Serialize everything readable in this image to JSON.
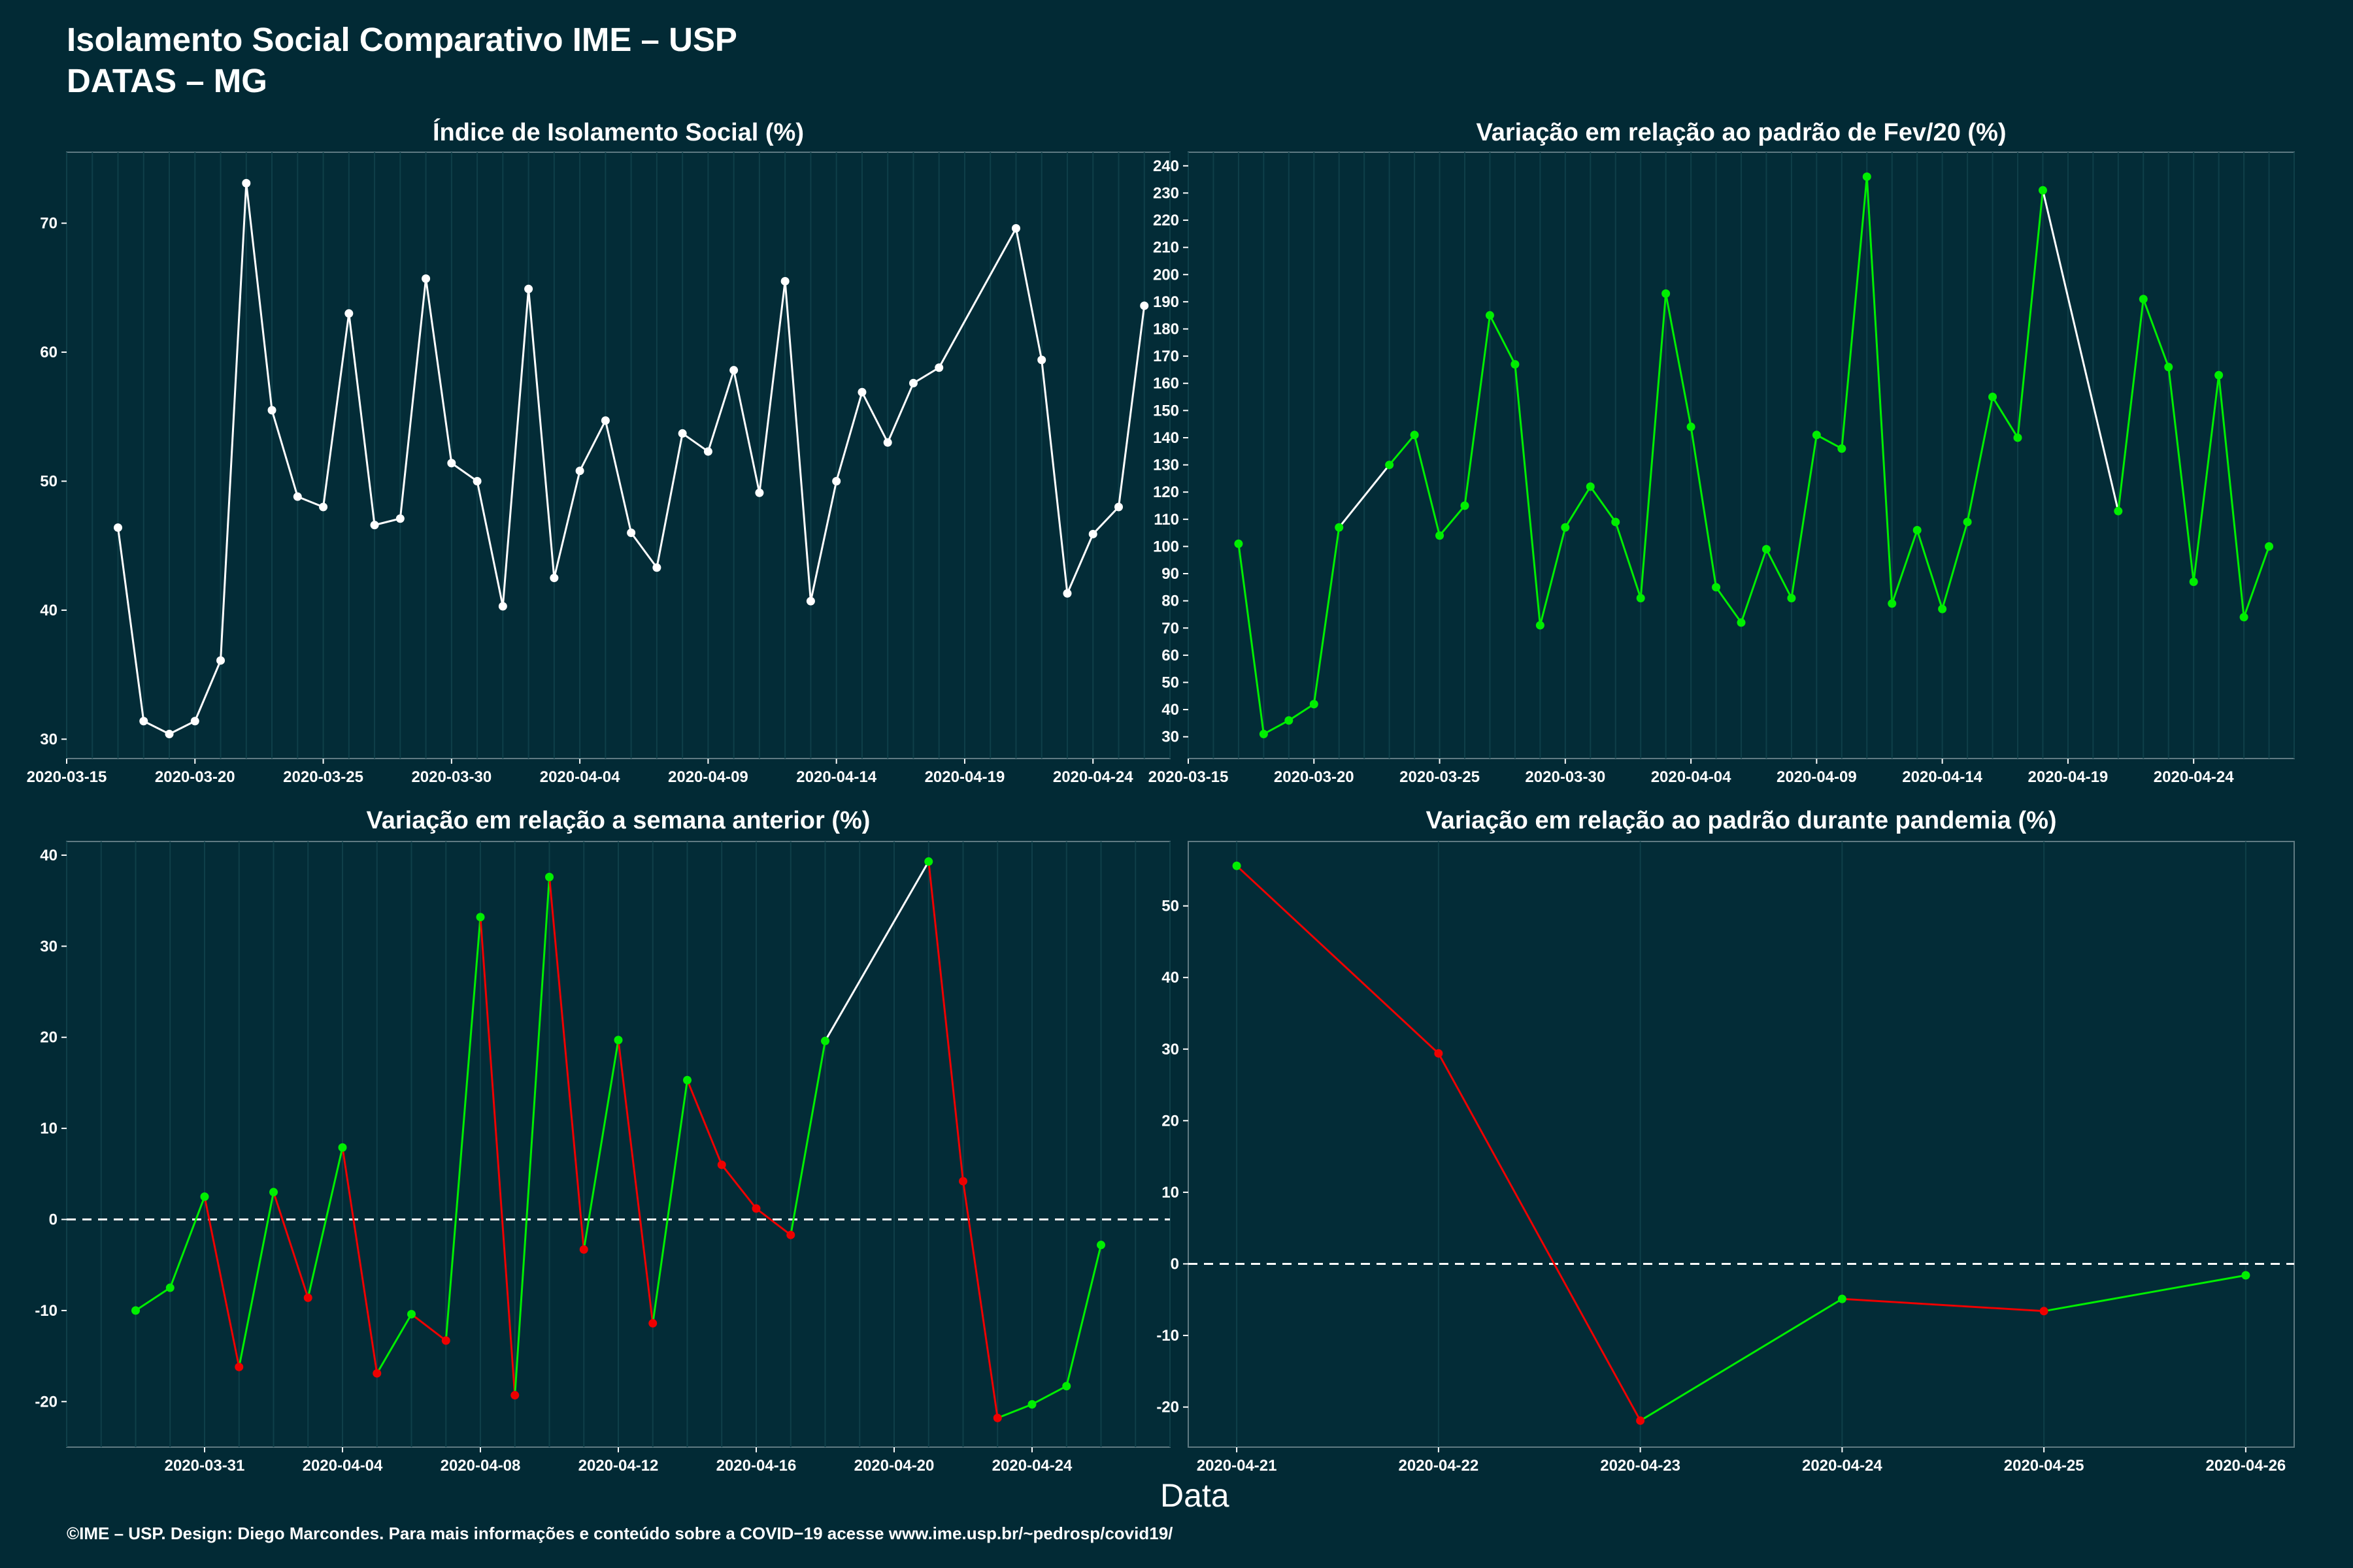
{
  "header": {
    "title_line1": "Isolamento Social Comparativo IME – USP",
    "title_line2": "DATAS – MG"
  },
  "xaxis_label": "Data",
  "footer": "©IME – USP. Design: Diego Marcondes. Para mais informações e conteúdo sobre a COVID−19 acesse www.ime.usp.br/~pedrosp/covid19/",
  "colors": {
    "background": "#022a35",
    "panel": "#032c37",
    "grid": "#0f3f49",
    "neutral_line": "#ffffff",
    "increase": "#00ee00",
    "decrease": "#ee0000"
  },
  "chart_data": [
    {
      "type": "line",
      "title": "Índice de Isolamento Social (%)",
      "color_mode": "white",
      "x_start": "2020-03-17",
      "x": [
        "2020-03-17",
        "2020-03-18",
        "2020-03-19",
        "2020-03-20",
        "2020-03-21",
        "2020-03-23",
        "2020-03-24",
        "2020-03-25",
        "2020-03-26",
        "2020-03-27",
        "2020-03-28",
        "2020-03-29",
        "2020-03-30",
        "2020-03-31",
        "2020-04-01",
        "2020-04-02",
        "2020-04-03",
        "2020-04-04",
        "2020-04-05",
        "2020-04-06",
        "2020-04-07",
        "2020-04-08",
        "2020-04-09",
        "2020-04-10",
        "2020-04-11",
        "2020-04-12",
        "2020-04-13",
        "2020-04-14",
        "2020-04-15",
        "2020-04-16",
        "2020-04-17",
        "2020-04-18",
        "2020-04-21",
        "2020-04-22",
        "2020-04-23",
        "2020-04-24",
        "2020-04-25",
        "2020-04-26"
      ],
      "y": [
        46.4,
        31.4,
        30.4,
        31.4,
        36.1,
        55.5,
        48.8,
        48.0,
        63.0,
        46.6,
        47.1,
        65.7,
        51.4,
        50.0,
        40.3,
        64.9,
        42.5,
        50.8,
        54.7,
        46.0,
        43.3,
        53.7,
        52.3,
        58.6,
        49.1,
        65.5,
        40.7,
        50.0,
        56.9,
        53.0,
        57.6,
        58.8,
        69.6,
        59.4,
        41.3,
        45.9,
        48.0,
        63.6
      ],
      "extra_points": [
        {
          "x": "2020-03-22",
          "y": 73.1
        }
      ],
      "xlim": [
        "2020-03-15",
        "2020-04-27"
      ],
      "ylim": [
        28.5,
        75.5
      ],
      "x_ticks": [
        "2020-03-15",
        "2020-03-20",
        "2020-03-25",
        "2020-03-30",
        "2020-04-04",
        "2020-04-09",
        "2020-04-14",
        "2020-04-19",
        "2020-04-24"
      ],
      "y_ticks": [
        30,
        40,
        50,
        60,
        70
      ],
      "zero_line": false
    },
    {
      "type": "line",
      "title": "Variação em relação ao padrão de Fev/20 (%)",
      "color_mode": "green",
      "x": [
        "2020-03-17",
        "2020-03-18",
        "2020-03-19",
        "2020-03-20",
        "2020-03-21",
        "2020-03-23",
        "2020-03-24",
        "2020-03-25",
        "2020-03-26",
        "2020-03-27",
        "2020-03-28",
        "2020-03-29",
        "2020-03-30",
        "2020-03-31",
        "2020-04-01",
        "2020-04-02",
        "2020-04-03",
        "2020-04-04",
        "2020-04-05",
        "2020-04-06",
        "2020-04-07",
        "2020-04-08",
        "2020-04-09",
        "2020-04-10",
        "2020-04-11",
        "2020-04-12",
        "2020-04-13",
        "2020-04-14",
        "2020-04-15",
        "2020-04-16",
        "2020-04-17",
        "2020-04-18",
        "2020-04-21",
        "2020-04-22",
        "2020-04-23",
        "2020-04-24",
        "2020-04-25",
        "2020-04-26"
      ],
      "y": [
        101,
        31,
        36,
        42,
        107,
        130,
        141,
        104,
        115,
        185,
        167,
        71,
        107,
        122,
        109,
        81,
        193,
        144,
        85,
        72,
        99,
        81,
        141,
        136,
        236,
        79,
        106,
        77,
        109,
        155,
        140,
        231,
        113,
        191,
        166,
        87,
        163,
        74
      ],
      "last_point": {
        "x": "2020-04-27",
        "y": 100
      },
      "xlim": [
        "2020-03-15",
        "2020-04-28"
      ],
      "ylim": [
        22,
        245
      ],
      "x_ticks": [
        "2020-03-15",
        "2020-03-20",
        "2020-03-25",
        "2020-03-30",
        "2020-04-04",
        "2020-04-09",
        "2020-04-14",
        "2020-04-19",
        "2020-04-24"
      ],
      "y_ticks": [
        30,
        40,
        50,
        60,
        70,
        80,
        90,
        100,
        110,
        120,
        130,
        140,
        150,
        160,
        170,
        180,
        190,
        200,
        210,
        220,
        230,
        240
      ],
      "zero_line": false
    },
    {
      "type": "line",
      "title": "Variação em relação a semana anterior (%)",
      "color_mode": "updown",
      "x": [
        "2020-03-29",
        "2020-03-30",
        "2020-03-31",
        "2020-04-01",
        "2020-04-02",
        "2020-04-03",
        "2020-04-04",
        "2020-04-05",
        "2020-04-06",
        "2020-04-07",
        "2020-04-08",
        "2020-04-09",
        "2020-04-10",
        "2020-04-11",
        "2020-04-12",
        "2020-04-13",
        "2020-04-14",
        "2020-04-15",
        "2020-04-16",
        "2020-04-17",
        "2020-04-18",
        "2020-04-21",
        "2020-04-22",
        "2020-04-23",
        "2020-04-24",
        "2020-04-25",
        "2020-04-26"
      ],
      "y": [
        -10.0,
        -7.5,
        2.5,
        -16.2,
        3.0,
        -8.6,
        7.9,
        -16.9,
        -10.4,
        -13.3,
        33.2,
        -19.3,
        37.6,
        -3.3,
        19.7,
        -11.4,
        15.3,
        6.0,
        1.2,
        -1.7,
        19.6,
        39.3,
        4.2,
        -21.8,
        -20.3,
        -18.3,
        -2.8
      ],
      "gap_after_index": 20,
      "xlim": [
        "2020-03-27",
        "2020-04-28"
      ],
      "ylim": [
        -25,
        41.5
      ],
      "x_ticks": [
        "2020-03-31",
        "2020-04-04",
        "2020-04-08",
        "2020-04-12",
        "2020-04-16",
        "2020-04-20",
        "2020-04-24"
      ],
      "y_ticks": [
        -20,
        -10,
        0,
        10,
        20,
        30,
        40
      ],
      "zero_line": true
    },
    {
      "type": "line",
      "title": "Variação em relação ao padrão durante pandemia (%)",
      "color_mode": "updown",
      "x": [
        "2020-04-21",
        "2020-04-22",
        "2020-04-23",
        "2020-04-24",
        "2020-04-25",
        "2020-04-26"
      ],
      "y": [
        55.6,
        29.4,
        -21.9,
        -4.9,
        -6.6,
        -1.6
      ],
      "xlim": [
        "2020-04-20.76",
        "2020-04-26.24"
      ],
      "ylim": [
        -25.6,
        59.0
      ],
      "x_ticks": [
        "2020-04-21",
        "2020-04-22",
        "2020-04-23",
        "2020-04-24",
        "2020-04-25",
        "2020-04-26"
      ],
      "y_ticks": [
        -20,
        -10,
        0,
        10,
        20,
        30,
        40,
        50
      ],
      "zero_line": true
    }
  ]
}
